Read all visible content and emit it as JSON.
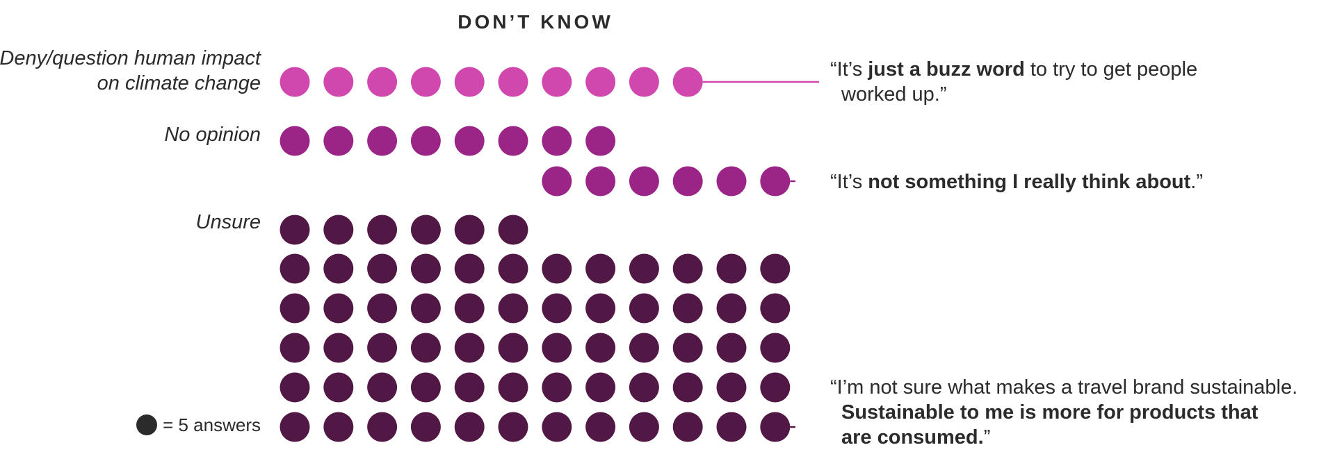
{
  "chart_data": {
    "type": "waffle",
    "title": "DON’T KNOW",
    "unit_label": "= 5 answers",
    "answers_per_dot": 5,
    "series": [
      {
        "name": "Deny/question human impact on climate change",
        "dots": 10,
        "color": "#d047ae"
      },
      {
        "name": "No opinion",
        "dots": 14,
        "color": "#9a2586"
      },
      {
        "name": "Unsure",
        "dots": 66,
        "color": "#521845"
      }
    ],
    "quotes": [
      {
        "open": "“It’s ",
        "bold": "just a buzz word",
        "rest": " to try to get people",
        "cont": "worked up.”",
        "cont_bold": "",
        "cont2": "",
        "close": ""
      },
      {
        "open": "“It’s ",
        "bold": "not something I really think about",
        "rest": ".”",
        "cont": "",
        "cont_bold": "",
        "cont2": "",
        "close": ""
      },
      {
        "open": "“I’m not sure what makes a travel brand sustainable.",
        "bold": "",
        "rest": "",
        "cont": "",
        "cont_bold": "Sustainable to me is more for products that",
        "cont2": "are consumed.",
        "close": "”"
      }
    ]
  },
  "legend_color": "#2b2b2b"
}
